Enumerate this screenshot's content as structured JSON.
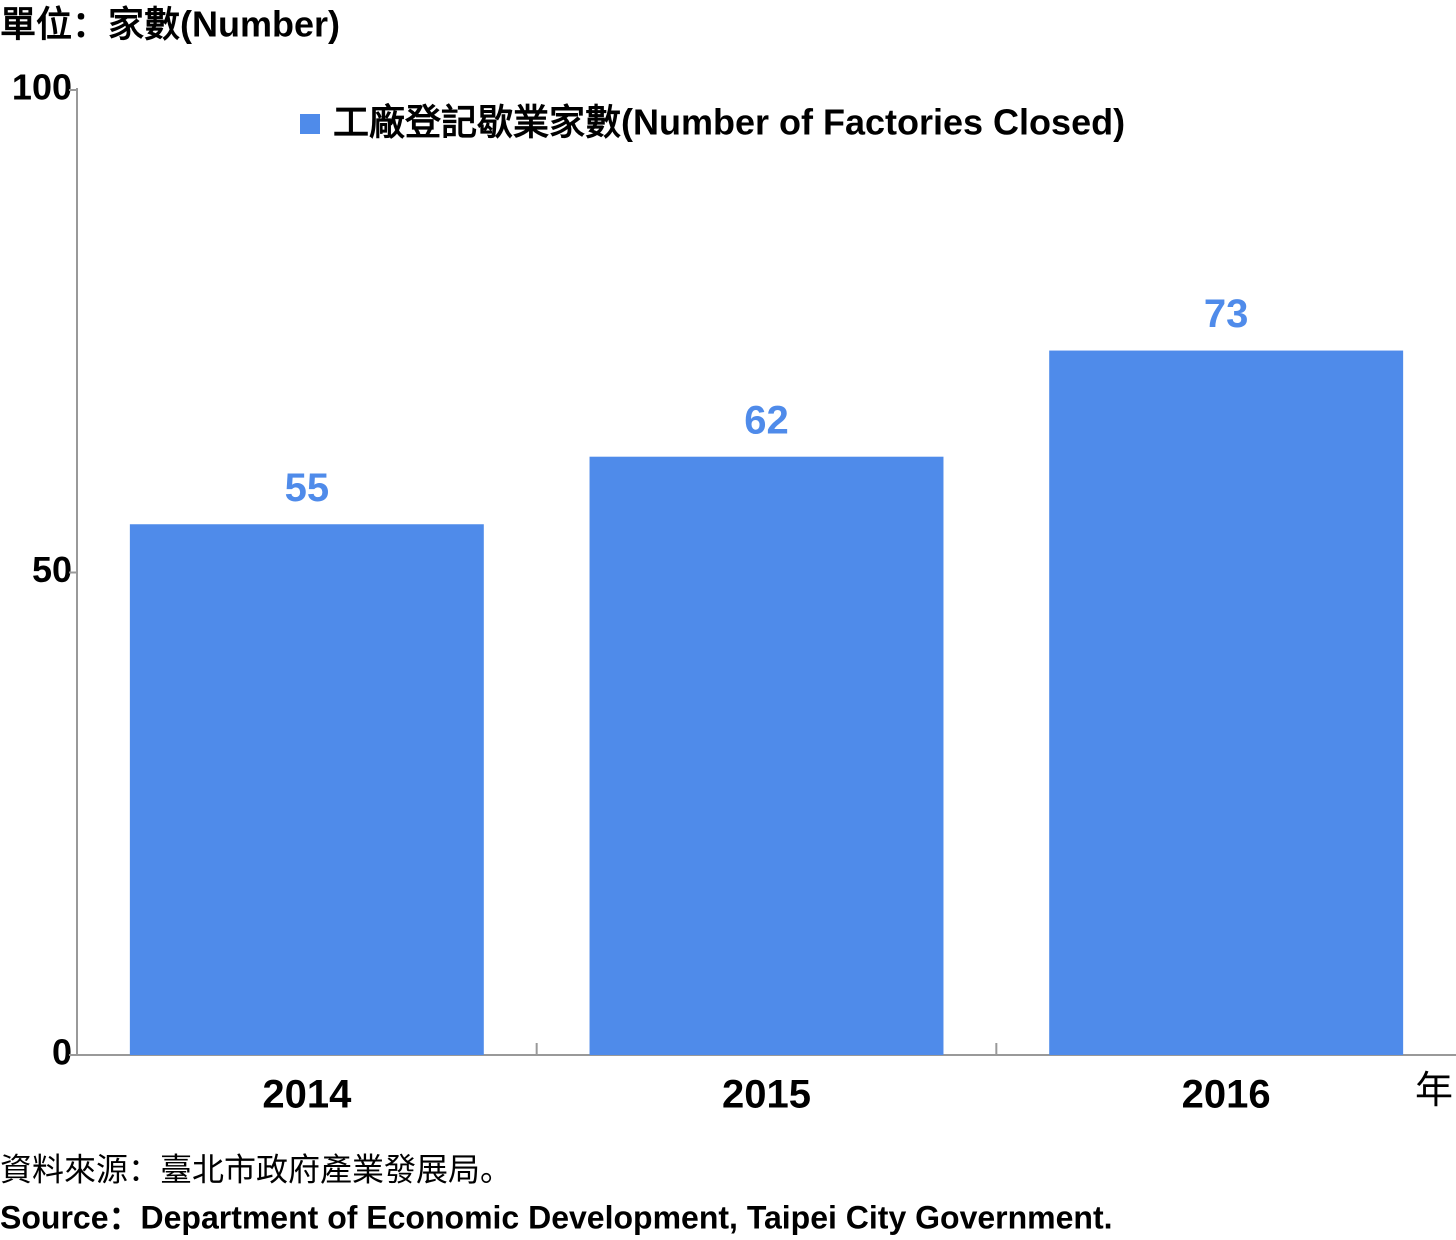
{
  "chart_data": {
    "type": "bar",
    "title": "單位：家數(Number)",
    "x_label": "年",
    "categories": [
      "2014",
      "2015",
      "2016"
    ],
    "series": [
      {
        "name": "工廠登記歇業家數(Number of Factories Closed)",
        "color": "#4f8bea",
        "values": [
          55,
          62,
          73
        ]
      }
    ],
    "ylim": [
      0,
      100
    ],
    "yticks": [
      0,
      50,
      100
    ],
    "source": [
      "資料來源：臺北市政府產業發展局。",
      "Source：Department of Economic Development, Taipei City Government."
    ]
  }
}
